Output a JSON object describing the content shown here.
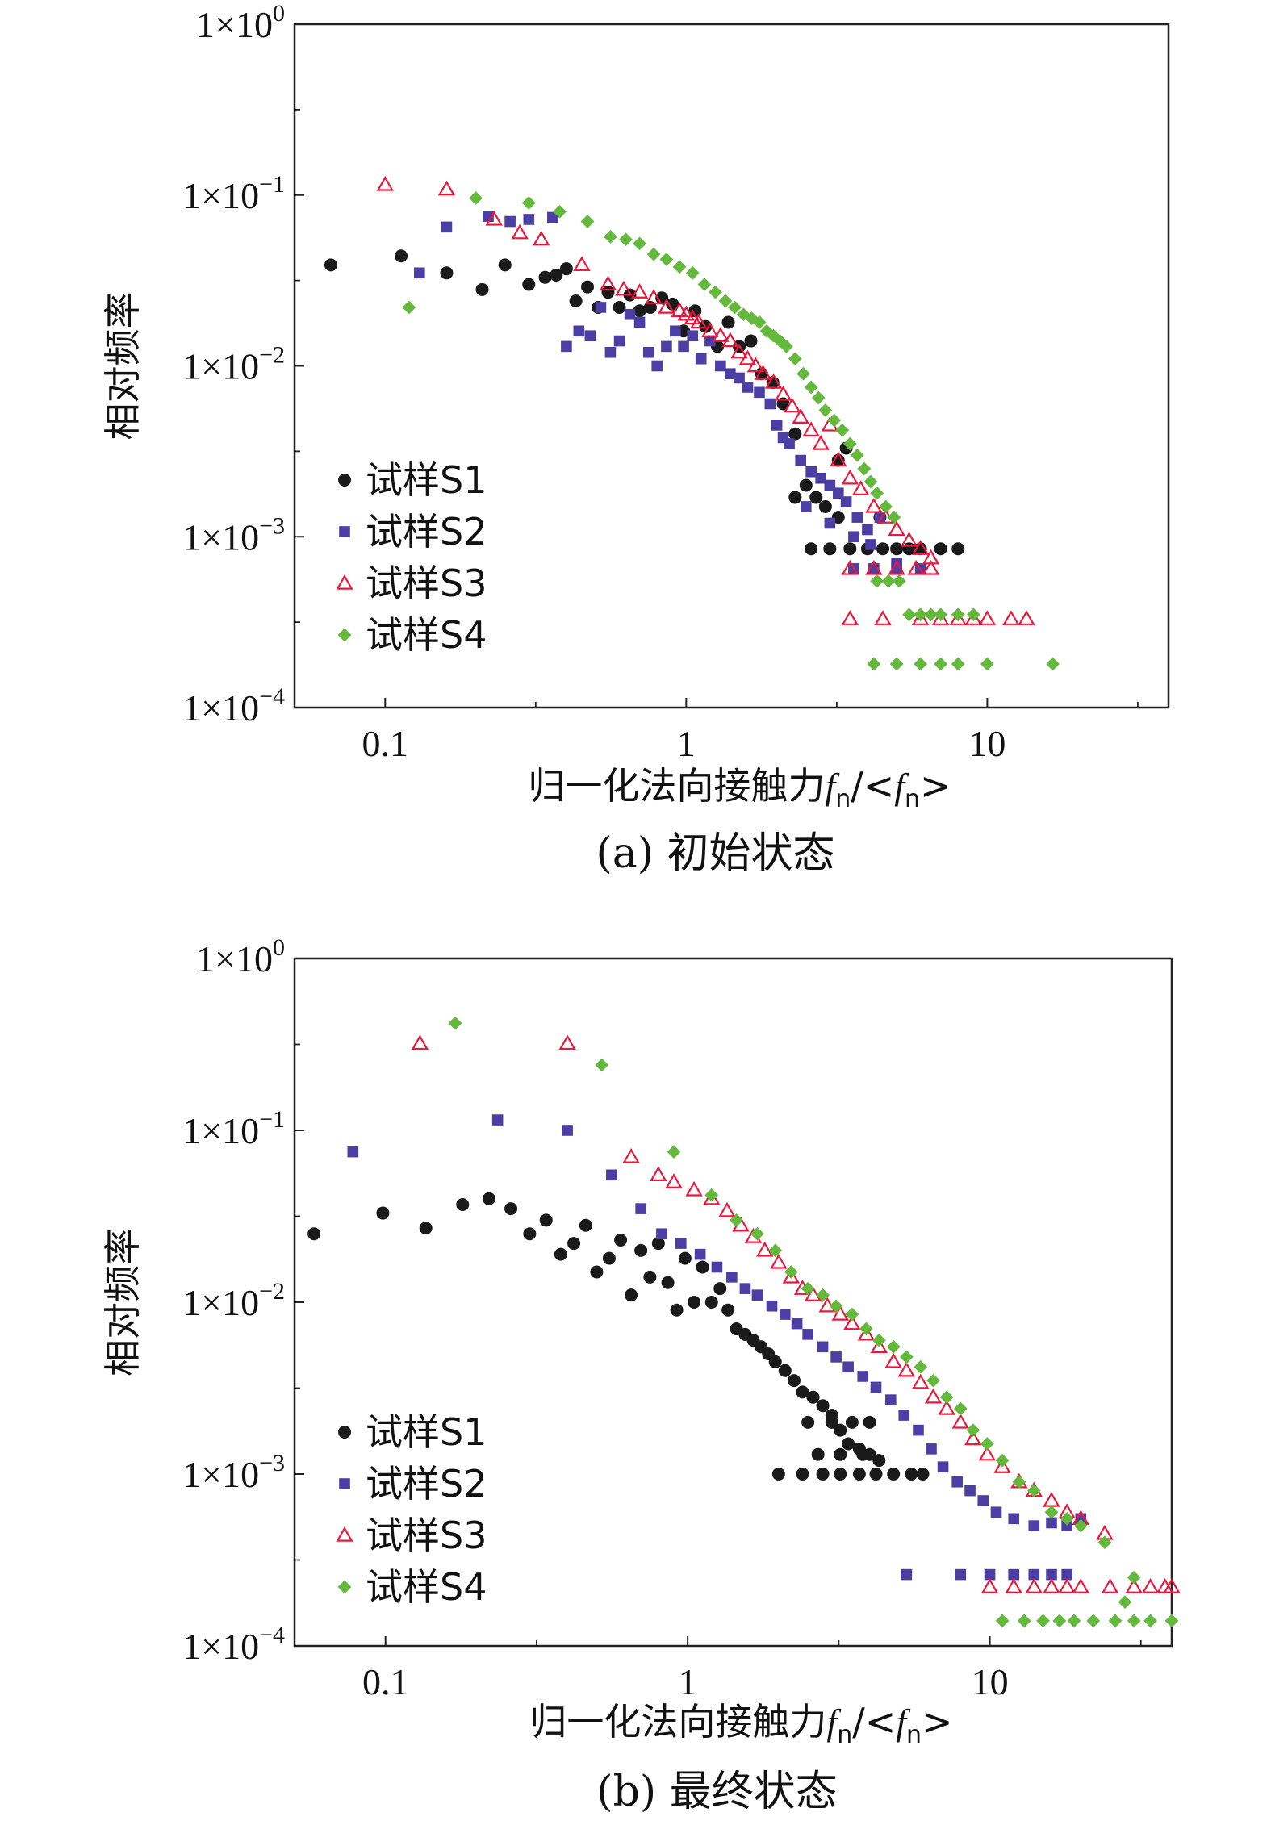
{
  "colors": {
    "S1": "#1a1a1a",
    "S2": "#4b3fa3",
    "S3": "#e8193c",
    "S4": "#64b93c"
  },
  "legend_marker_icons": {
    "S1": "filled-circle",
    "S2": "filled-square",
    "S3": "hollow-triangle",
    "S4": "filled-diamond"
  },
  "panels": [
    {
      "caption": "(a) 初始状态",
      "ylabel": "相对频率",
      "xlabel": "归一化法向接触力",
      "xlabel_symbol": "f",
      "xlabel_sub": "n",
      "xlabel_sep": "/<",
      "xlabel_end": ">",
      "xticks": [
        {
          "value": 0.1,
          "label": "0.1"
        },
        {
          "value": 1,
          "label": "1"
        },
        {
          "value": 10,
          "label": "10"
        }
      ],
      "yticks": [
        {
          "value": 1,
          "base": "1×10",
          "exp": "0"
        },
        {
          "value": 0.1,
          "base": "1×10",
          "exp": "−1"
        },
        {
          "value": 0.01,
          "base": "1×10",
          "exp": "−2"
        },
        {
          "value": 0.001,
          "base": "1×10",
          "exp": "−3"
        },
        {
          "value": 0.0001,
          "base": "1×10",
          "exp": "−4"
        }
      ],
      "legend": [
        "试样S1",
        "试样S2",
        "试样S3",
        "试样S4"
      ]
    },
    {
      "caption": "(b) 最终状态",
      "ylabel": "相对频率",
      "xlabel": "归一化法向接触力",
      "xlabel_symbol": "f",
      "xlabel_sub": "n",
      "xlabel_sep": "/<",
      "xlabel_end": ">",
      "xticks": [
        {
          "value": 0.1,
          "label": "0.1"
        },
        {
          "value": 1,
          "label": "1"
        },
        {
          "value": 10,
          "label": "10"
        }
      ],
      "yticks": [
        {
          "value": 1,
          "base": "1×10",
          "exp": "0"
        },
        {
          "value": 0.1,
          "base": "1×10",
          "exp": "−1"
        },
        {
          "value": 0.01,
          "base": "1×10",
          "exp": "−2"
        },
        {
          "value": 0.001,
          "base": "1×10",
          "exp": "−3"
        },
        {
          "value": 0.0001,
          "base": "1×10",
          "exp": "−4"
        }
      ],
      "legend": [
        "试样S1",
        "试样S2",
        "试样S3",
        "试样S4"
      ]
    }
  ],
  "chart_data": [
    {
      "type": "scatter",
      "title": "(a) 初始状态",
      "xlabel": "归一化法向接触力fn/<fn>",
      "ylabel": "相对频率",
      "xscale": "log",
      "yscale": "log",
      "xlim": [
        0.05,
        40
      ],
      "ylim": [
        0.0001,
        1
      ],
      "grid": false,
      "legend_position": "bottom-left",
      "series": [
        {
          "name": "试样S1",
          "marker": "circle",
          "x": [
            0.066,
            0.113,
            0.16,
            0.21,
            0.25,
            0.3,
            0.34,
            0.37,
            0.4,
            0.43,
            0.47,
            0.51,
            0.55,
            0.6,
            0.65,
            0.7,
            0.76,
            0.83,
            0.9,
            0.98,
            1.07,
            1.16,
            1.27,
            1.38,
            1.5,
            1.64,
            1.78,
            1.94,
            2.1,
            2.3,
            2.5,
            2.7,
            2.9,
            3.2,
            3.4,
            2.6,
            3.0,
            3.5,
            4.0,
            4.5,
            5.0,
            5.5,
            6.0,
            7.0,
            8.0,
            2.3,
            3.2,
            4.4
          ],
          "y": [
            0.039,
            0.044,
            0.035,
            0.028,
            0.039,
            0.03,
            0.033,
            0.034,
            0.037,
            0.024,
            0.029,
            0.022,
            0.027,
            0.022,
            0.026,
            0.021,
            0.022,
            0.025,
            0.023,
            0.016,
            0.021,
            0.017,
            0.013,
            0.018,
            0.013,
            0.014,
            0.009,
            0.008,
            0.006,
            0.004,
            0.002,
            0.0017,
            0.0015,
            0.0028,
            0.0033,
            0.00085,
            0.00085,
            0.00085,
            0.00085,
            0.00085,
            0.00085,
            0.00085,
            0.00085,
            0.00085,
            0.00085,
            0.0017,
            0.0013,
            0.0013
          ]
        },
        {
          "name": "试样S2",
          "marker": "square",
          "x": [
            0.13,
            0.16,
            0.22,
            0.26,
            0.3,
            0.36,
            0.4,
            0.44,
            0.48,
            0.52,
            0.56,
            0.6,
            0.65,
            0.7,
            0.75,
            0.8,
            0.86,
            0.92,
            0.98,
            1.05,
            1.12,
            1.2,
            1.3,
            1.4,
            1.5,
            1.6,
            1.75,
            1.9,
            2.0,
            2.1,
            2.2,
            2.4,
            2.6,
            2.8,
            3.0,
            3.2,
            3.4,
            3.7,
            4.0,
            4.4,
            2.5,
            3.0,
            3.6,
            4.1,
            5.0,
            3.6,
            4.2,
            5.0,
            6.0
          ],
          "y": [
            0.035,
            0.065,
            0.075,
            0.07,
            0.072,
            0.074,
            0.013,
            0.016,
            0.015,
            0.022,
            0.012,
            0.014,
            0.02,
            0.018,
            0.012,
            0.01,
            0.013,
            0.016,
            0.013,
            0.015,
            0.011,
            0.014,
            0.01,
            0.009,
            0.0085,
            0.0075,
            0.007,
            0.006,
            0.0045,
            0.0038,
            0.0035,
            0.0028,
            0.0024,
            0.0022,
            0.002,
            0.0018,
            0.0016,
            0.0013,
            0.0011,
            0.0013,
            0.0015,
            0.0012,
            0.001,
            0.0009,
            0.0007,
            0.00065,
            0.00065,
            0.00065,
            0.00065
          ]
        },
        {
          "name": "试样S3",
          "marker": "triangle",
          "x": [
            0.1,
            0.16,
            0.23,
            0.28,
            0.33,
            0.45,
            0.55,
            0.62,
            0.7,
            0.78,
            0.86,
            0.95,
            1.0,
            1.05,
            1.1,
            1.2,
            1.3,
            1.4,
            1.5,
            1.6,
            1.7,
            1.8,
            1.95,
            2.1,
            2.25,
            2.4,
            2.6,
            2.8,
            3.0,
            3.2,
            3.5,
            3.8,
            4.2,
            4.6,
            5.0,
            5.5,
            6.0,
            6.5,
            3.5,
            4.2,
            5.0,
            5.8,
            6.5,
            3.5,
            4.5,
            6.0,
            7.0,
            8.0,
            9.0,
            10.0,
            12.0,
            13.5
          ],
          "y": [
            0.115,
            0.108,
            0.072,
            0.06,
            0.055,
            0.039,
            0.03,
            0.028,
            0.027,
            0.025,
            0.022,
            0.021,
            0.02,
            0.019,
            0.018,
            0.016,
            0.015,
            0.014,
            0.012,
            0.011,
            0.01,
            0.009,
            0.008,
            0.0068,
            0.0058,
            0.005,
            0.0042,
            0.0035,
            0.0045,
            0.0028,
            0.0022,
            0.0019,
            0.0015,
            0.0013,
            0.0011,
            0.00095,
            0.00085,
            0.00075,
            0.00065,
            0.00065,
            0.00065,
            0.00065,
            0.00065,
            0.00033,
            0.00033,
            0.00033,
            0.00033,
            0.00033,
            0.00033,
            0.00033,
            0.00033,
            0.00033
          ]
        },
        {
          "name": "试样S4",
          "marker": "diamond",
          "x": [
            0.12,
            0.2,
            0.3,
            0.38,
            0.47,
            0.56,
            0.63,
            0.7,
            0.78,
            0.86,
            0.95,
            1.05,
            1.15,
            1.25,
            1.35,
            1.45,
            1.55,
            1.65,
            1.75,
            1.85,
            1.95,
            2.05,
            2.15,
            2.3,
            2.45,
            2.6,
            2.75,
            2.9,
            3.1,
            3.3,
            3.5,
            3.7,
            3.9,
            4.1,
            4.3,
            4.6,
            4.9,
            4.3,
            4.7,
            5.1,
            5.5,
            6.0,
            6.5,
            7.0,
            8.0,
            9.0,
            4.2,
            5.0,
            6.0,
            7.0,
            8.0,
            10.0,
            16.5
          ],
          "y": [
            0.022,
            0.096,
            0.09,
            0.08,
            0.07,
            0.057,
            0.055,
            0.052,
            0.045,
            0.042,
            0.038,
            0.035,
            0.03,
            0.027,
            0.024,
            0.022,
            0.02,
            0.019,
            0.018,
            0.016,
            0.015,
            0.014,
            0.013,
            0.011,
            0.009,
            0.0075,
            0.0065,
            0.0055,
            0.0048,
            0.0042,
            0.0035,
            0.003,
            0.0025,
            0.0021,
            0.0018,
            0.0015,
            0.0013,
            0.00055,
            0.00055,
            0.00055,
            0.00035,
            0.00035,
            0.00035,
            0.00035,
            0.00035,
            0.00035,
            0.00018,
            0.00018,
            0.00018,
            0.00018,
            0.00018,
            0.00018,
            0.00018
          ]
        }
      ]
    },
    {
      "type": "scatter",
      "title": "(b) 最终状态",
      "xlabel": "归一化法向接触力fn/<fn>",
      "ylabel": "相对频率",
      "xscale": "log",
      "yscale": "log",
      "xlim": [
        0.05,
        40
      ],
      "ylim": [
        0.0001,
        1
      ],
      "grid": false,
      "legend_position": "bottom-left",
      "series": [
        {
          "name": "试样S1",
          "marker": "circle",
          "x": [
            0.058,
            0.098,
            0.136,
            0.18,
            0.22,
            0.26,
            0.3,
            0.34,
            0.38,
            0.42,
            0.46,
            0.5,
            0.55,
            0.6,
            0.65,
            0.7,
            0.75,
            0.8,
            0.86,
            0.92,
            0.98,
            1.05,
            1.12,
            1.2,
            1.28,
            1.36,
            1.45,
            1.55,
            1.65,
            1.75,
            1.85,
            1.95,
            2.1,
            2.25,
            2.4,
            2.6,
            2.8,
            3.0,
            3.2,
            3.4,
            3.7,
            4.0,
            4.3,
            2.0,
            2.4,
            2.8,
            3.2,
            3.7,
            4.2,
            4.8,
            5.5,
            6.0,
            2.5,
            3.0,
            3.5,
            4.0,
            2.7,
            3.2,
            3.8
          ],
          "y": [
            0.025,
            0.033,
            0.027,
            0.037,
            0.04,
            0.035,
            0.025,
            0.03,
            0.019,
            0.022,
            0.028,
            0.015,
            0.018,
            0.023,
            0.011,
            0.02,
            0.014,
            0.022,
            0.013,
            0.009,
            0.018,
            0.01,
            0.016,
            0.01,
            0.012,
            0.009,
            0.007,
            0.0065,
            0.006,
            0.0055,
            0.005,
            0.0045,
            0.004,
            0.0035,
            0.003,
            0.0028,
            0.0025,
            0.0022,
            0.0018,
            0.0015,
            0.0014,
            0.0013,
            0.0012,
            0.001,
            0.001,
            0.001,
            0.001,
            0.001,
            0.001,
            0.001,
            0.001,
            0.001,
            0.002,
            0.002,
            0.002,
            0.002,
            0.0013,
            0.0013,
            0.0013
          ]
        },
        {
          "name": "试样S2",
          "marker": "square",
          "x": [
            0.078,
            0.235,
            0.4,
            0.56,
            0.7,
            0.82,
            0.95,
            1.1,
            1.25,
            1.4,
            1.55,
            1.7,
            1.9,
            2.1,
            2.3,
            2.5,
            2.8,
            3.1,
            3.4,
            3.8,
            4.2,
            4.7,
            5.2,
            5.8,
            6.4,
            7.0,
            7.8,
            8.6,
            9.5,
            10.5,
            12.0,
            14.0,
            16.0,
            18.0,
            20.0,
            5.3,
            8.0,
            10.0,
            12.0,
            14.0,
            16.0,
            18.0
          ],
          "y": [
            0.075,
            0.115,
            0.1,
            0.055,
            0.035,
            0.025,
            0.022,
            0.019,
            0.016,
            0.014,
            0.012,
            0.011,
            0.0095,
            0.0085,
            0.0075,
            0.0065,
            0.0055,
            0.0048,
            0.0042,
            0.0037,
            0.0032,
            0.0027,
            0.0022,
            0.0018,
            0.0014,
            0.0011,
            0.0009,
            0.0008,
            0.0007,
            0.0006,
            0.00055,
            0.0005,
            0.00052,
            0.0005,
            0.00055,
            0.00026,
            0.00026,
            0.00026,
            0.00026,
            0.00026,
            0.00026,
            0.00026
          ]
        },
        {
          "name": "试样S3",
          "marker": "triangle",
          "x": [
            0.13,
            0.4,
            0.65,
            0.8,
            0.9,
            1.05,
            1.2,
            1.35,
            1.5,
            1.65,
            1.8,
            2.0,
            2.2,
            2.4,
            2.6,
            2.9,
            3.2,
            3.5,
            3.9,
            4.3,
            4.8,
            5.3,
            5.9,
            6.5,
            7.2,
            8.0,
            8.8,
            9.8,
            11.0,
            12.5,
            14.0,
            16.0,
            18.0,
            20.0,
            24.0,
            10.0,
            12.0,
            14.0,
            16.0,
            18.0,
            20.0,
            25.0,
            30.0,
            34.0,
            38.0,
            40.0
          ],
          "y": [
            0.32,
            0.32,
            0.07,
            0.055,
            0.05,
            0.045,
            0.04,
            0.034,
            0.028,
            0.024,
            0.02,
            0.017,
            0.014,
            0.012,
            0.011,
            0.0095,
            0.0085,
            0.0075,
            0.0065,
            0.0055,
            0.0045,
            0.004,
            0.0034,
            0.0028,
            0.0024,
            0.002,
            0.0016,
            0.0013,
            0.0011,
            0.0009,
            0.0008,
            0.0007,
            0.0006,
            0.00055,
            0.00045,
            0.00022,
            0.00022,
            0.00022,
            0.00022,
            0.00022,
            0.00022,
            0.00022,
            0.00022,
            0.00022,
            0.00022,
            0.00022
          ]
        },
        {
          "name": "试样S4",
          "marker": "diamond",
          "x": [
            0.17,
            0.52,
            0.9,
            1.2,
            1.45,
            1.7,
            1.95,
            2.2,
            2.5,
            2.8,
            3.1,
            3.5,
            3.9,
            4.3,
            4.8,
            5.3,
            5.9,
            6.5,
            7.2,
            8.0,
            8.8,
            9.8,
            11.0,
            12.5,
            14.0,
            16.0,
            18.0,
            20.0,
            24.0,
            30.0,
            11.0,
            13.0,
            15.0,
            17.0,
            19.0,
            22.0,
            26.0,
            30.0,
            34.0,
            40.0,
            28.0
          ],
          "y": [
            0.42,
            0.24,
            0.075,
            0.042,
            0.03,
            0.025,
            0.02,
            0.015,
            0.012,
            0.011,
            0.0095,
            0.0085,
            0.007,
            0.006,
            0.0055,
            0.0048,
            0.0042,
            0.0035,
            0.0028,
            0.0024,
            0.0018,
            0.0015,
            0.0012,
            0.0009,
            0.0008,
            0.0006,
            0.00055,
            0.0005,
            0.0004,
            0.00025,
            0.00014,
            0.00014,
            0.00014,
            0.00014,
            0.00014,
            0.00014,
            0.00014,
            0.00014,
            0.00014,
            0.00014,
            0.00018
          ]
        }
      ]
    }
  ]
}
